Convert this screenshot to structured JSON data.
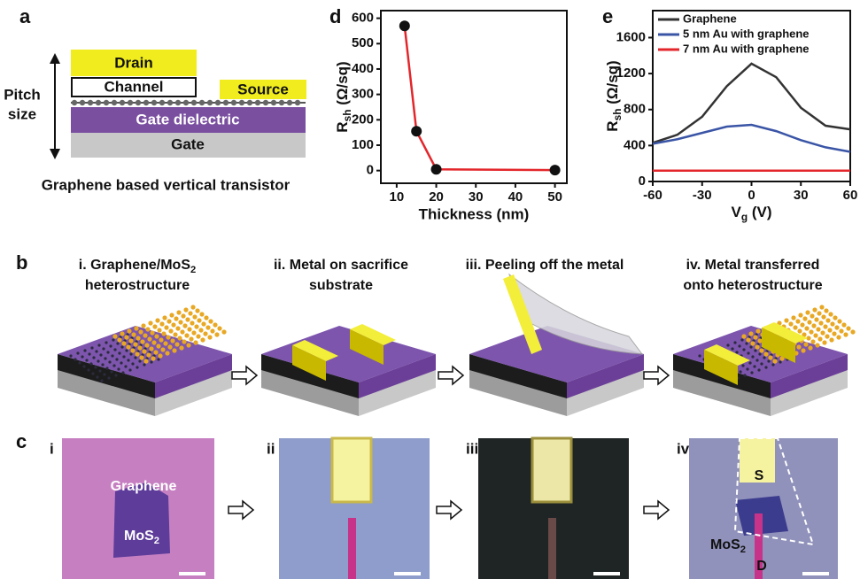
{
  "panel_a": {
    "label": "a",
    "pitch_label": [
      "Pitch",
      "size"
    ],
    "layers": {
      "drain": "Drain",
      "channel": "Channel",
      "source": "Source",
      "dielectric": "Gate dielectric",
      "gate": "Gate"
    },
    "caption": "Graphene based vertical transistor"
  },
  "panel_b": {
    "label": "b",
    "steps": [
      {
        "line1": "i. Graphene/MoS",
        "line1_sub": "2",
        "line2": "heterostructure"
      },
      {
        "line1": "ii. Metal on sacrifice",
        "line2": "substrate"
      },
      {
        "line1": "iii. Peeling off the metal"
      },
      {
        "line1": "iv. Metal transferred",
        "line2": "onto heterostructure"
      }
    ]
  },
  "panel_c": {
    "label": "c",
    "images": [
      {
        "label": "i",
        "graphene": "Graphene",
        "mos": "MoS",
        "mos_sub": "2"
      },
      {
        "label": "ii"
      },
      {
        "label": "iii"
      },
      {
        "label": "iv",
        "source": "S",
        "drain": "D",
        "mos": "MoS",
        "mos_sub": "2"
      }
    ]
  },
  "chart_data": [
    {
      "type": "line",
      "panel_label": "d",
      "xlabel": "Thickness (nm)",
      "ylabel": {
        "symbol": "R",
        "subscript": "sh",
        "unit": " (Ω/sq)"
      },
      "x": [
        12,
        15,
        20,
        50
      ],
      "series": [
        {
          "color": "#e3262b",
          "marker_color": "#111111",
          "values": [
            570,
            155,
            5,
            2
          ]
        }
      ],
      "markers": true,
      "xlim": [
        6,
        53
      ],
      "ylim": [
        -50,
        630
      ],
      "xticks": [
        10,
        20,
        30,
        40,
        50
      ],
      "yticks": [
        0,
        100,
        200,
        300,
        400,
        500,
        600
      ]
    },
    {
      "type": "line",
      "panel_label": "e",
      "xlabel": {
        "symbol": "V",
        "subscript": "g",
        "unit": " (V)"
      },
      "ylabel": {
        "symbol": "R",
        "subscript": "sh",
        "unit": " (Ω/sq)"
      },
      "x": [
        -60,
        -45,
        -30,
        -15,
        0,
        15,
        30,
        45,
        60
      ],
      "series": [
        {
          "name": "Graphene",
          "color": "#333333",
          "values": [
            430,
            520,
            720,
            1060,
            1310,
            1160,
            820,
            620,
            580
          ]
        },
        {
          "name": "5 nm Au with graphene",
          "color": "#3a55a6",
          "values": [
            420,
            470,
            540,
            610,
            630,
            560,
            460,
            380,
            330
          ]
        },
        {
          "name": "7 nm Au with graphene",
          "color": "#e3262b",
          "values": [
            120,
            120,
            120,
            120,
            120,
            120,
            120,
            120,
            120
          ]
        }
      ],
      "legend": "upper left",
      "xlim": [
        -60,
        60
      ],
      "ylim": [
        0,
        1900
      ],
      "xticks": [
        -60,
        -30,
        0,
        30,
        60
      ],
      "yticks": [
        0,
        400,
        800,
        1200,
        1600
      ]
    }
  ]
}
